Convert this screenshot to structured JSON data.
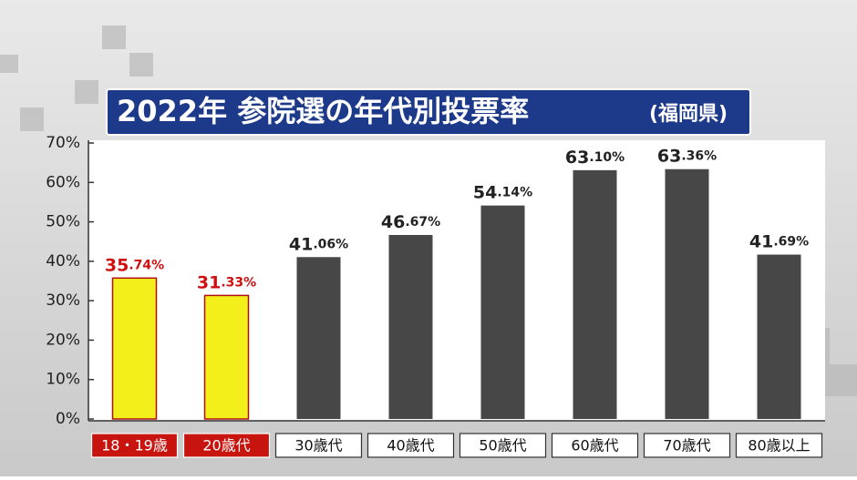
{
  "chart_data": {
    "type": "bar",
    "title": "2022年 参院選の年代別投票率",
    "subtitle": "(福岡県)",
    "categories": [
      "18・19歳",
      "20歳代",
      "30歳代",
      "40歳代",
      "50歳代",
      "60歳代",
      "70歳代",
      "80歳以上"
    ],
    "values": [
      35.74,
      31.33,
      41.06,
      46.67,
      54.14,
      63.1,
      63.36,
      41.69
    ],
    "value_labels": [
      "35.74%",
      "31.33%",
      "41.06%",
      "46.67%",
      "54.14%",
      "63.10%",
      "63.36%",
      "41.69%"
    ],
    "colors": [
      "#f2ef1a",
      "#f2ef1a",
      "#474747",
      "#474747",
      "#474747",
      "#474747",
      "#474747",
      "#474747"
    ],
    "highlight": [
      true,
      true,
      false,
      false,
      false,
      false,
      false,
      false
    ],
    "ylim": [
      0,
      70
    ],
    "yticks": [
      {
        "value": 0,
        "label": "0%"
      },
      {
        "value": 10,
        "label": "10%"
      },
      {
        "value": 20,
        "label": "20%"
      },
      {
        "value": 30,
        "label": "30%"
      },
      {
        "value": 40,
        "label": "40%"
      },
      {
        "value": 50,
        "label": "50%"
      },
      {
        "value": 60,
        "label": "60%"
      },
      {
        "value": 70,
        "label": "70%"
      }
    ],
    "grid": false
  }
}
